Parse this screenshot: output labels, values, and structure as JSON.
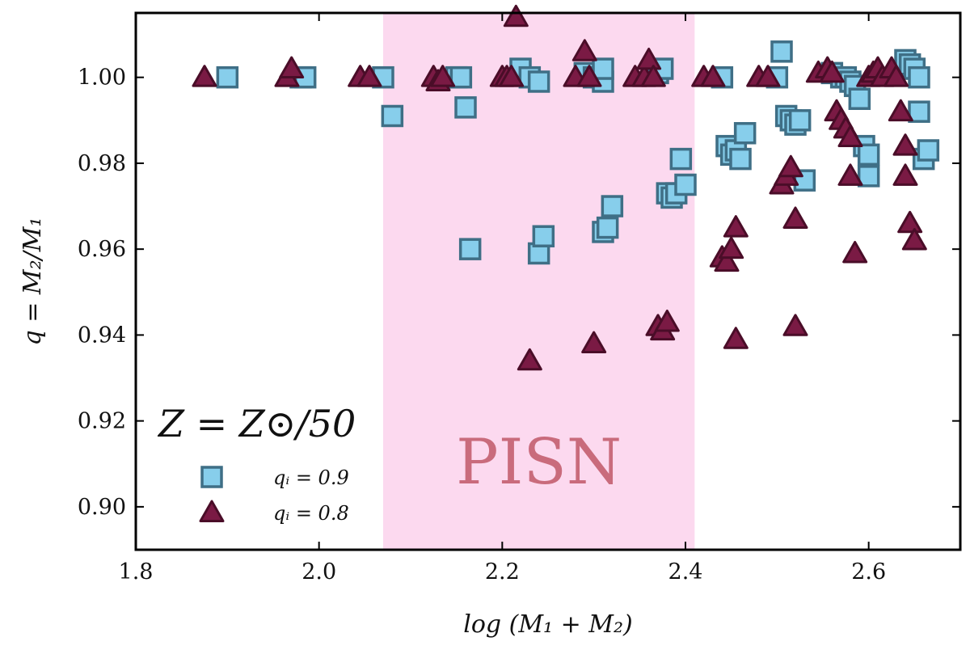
{
  "chart_data": {
    "type": "scatter",
    "title": "",
    "xlabel": "log (M₁ + M₂)",
    "ylabel": "q = M₂/M₁",
    "xlim": [
      1.8,
      2.7
    ],
    "ylim": [
      0.89,
      1.015
    ],
    "xticks": [
      "1.8",
      "2.0",
      "2.2",
      "2.4",
      "2.6"
    ],
    "xtick_values": [
      1.8,
      2.0,
      2.2,
      2.4,
      2.6
    ],
    "yticks": [
      "0.90",
      "0.92",
      "0.94",
      "0.96",
      "0.98",
      "1.00"
    ],
    "ytick_values": [
      0.9,
      0.92,
      0.94,
      0.96,
      0.98,
      1.0
    ],
    "grid": false,
    "shaded_region": {
      "label": "PISN",
      "x_range": [
        2.07,
        2.41
      ],
      "color": "#fcd9ef"
    },
    "legend": {
      "title": "Z = Z⊙/50",
      "placement": "lower-left"
    },
    "series": [
      {
        "name": "qᵢ = 0.9",
        "marker": "square",
        "color": "#87ceeb",
        "edge_color": "#3f6f86",
        "points": [
          [
            1.9,
            1.0
          ],
          [
            1.98,
            1.0
          ],
          [
            1.985,
            1.0
          ],
          [
            2.07,
            1.0
          ],
          [
            2.08,
            0.991
          ],
          [
            2.15,
            1.0
          ],
          [
            2.155,
            1.0
          ],
          [
            2.16,
            0.993
          ],
          [
            2.165,
            0.96
          ],
          [
            2.22,
            1.002
          ],
          [
            2.23,
            1.0
          ],
          [
            2.24,
            0.999
          ],
          [
            2.24,
            0.959
          ],
          [
            2.245,
            0.963
          ],
          [
            2.29,
            1.001
          ],
          [
            2.3,
            1.0
          ],
          [
            2.31,
            0.999
          ],
          [
            2.31,
            1.002
          ],
          [
            2.31,
            0.964
          ],
          [
            2.315,
            0.965
          ],
          [
            2.32,
            0.97
          ],
          [
            2.37,
            1.001
          ],
          [
            2.375,
            1.002
          ],
          [
            2.38,
            0.973
          ],
          [
            2.385,
            0.972
          ],
          [
            2.39,
            0.973
          ],
          [
            2.395,
            0.981
          ],
          [
            2.4,
            0.975
          ],
          [
            2.44,
            1.0
          ],
          [
            2.445,
            0.984
          ],
          [
            2.45,
            0.982
          ],
          [
            2.455,
            0.983
          ],
          [
            2.46,
            0.981
          ],
          [
            2.465,
            0.987
          ],
          [
            2.5,
            1.0
          ],
          [
            2.505,
            1.006
          ],
          [
            2.51,
            0.991
          ],
          [
            2.515,
            0.99
          ],
          [
            2.52,
            0.989
          ],
          [
            2.525,
            0.99
          ],
          [
            2.53,
            0.976
          ],
          [
            2.56,
            1.001
          ],
          [
            2.57,
            1.0
          ],
          [
            2.575,
            1.0
          ],
          [
            2.58,
            0.999
          ],
          [
            2.585,
            0.998
          ],
          [
            2.59,
            0.995
          ],
          [
            2.595,
            0.984
          ],
          [
            2.6,
            0.977
          ],
          [
            2.6,
            0.982
          ],
          [
            2.64,
            1.004
          ],
          [
            2.645,
            1.003
          ],
          [
            2.65,
            1.002
          ],
          [
            2.655,
            1.0
          ],
          [
            2.655,
            0.992
          ],
          [
            2.66,
            0.981
          ],
          [
            2.665,
            0.983
          ]
        ]
      },
      {
        "name": "qᵢ = 0.8",
        "marker": "triangle",
        "color": "#7a1a44",
        "edge_color": "#4a0d28",
        "points": [
          [
            1.875,
            1.0
          ],
          [
            1.965,
            1.0
          ],
          [
            1.97,
            1.002
          ],
          [
            2.045,
            1.0
          ],
          [
            2.055,
            1.0
          ],
          [
            2.125,
            1.0
          ],
          [
            2.13,
            0.999
          ],
          [
            2.135,
            1.0
          ],
          [
            2.2,
            1.0
          ],
          [
            2.205,
            1.0
          ],
          [
            2.21,
            1.0
          ],
          [
            2.215,
            1.014
          ],
          [
            2.23,
            0.934
          ],
          [
            2.28,
            1.0
          ],
          [
            2.29,
            1.006
          ],
          [
            2.295,
            1.0
          ],
          [
            2.3,
            0.938
          ],
          [
            2.345,
            1.0
          ],
          [
            2.355,
            1.0
          ],
          [
            2.36,
            1.004
          ],
          [
            2.365,
            1.0
          ],
          [
            2.37,
            0.942
          ],
          [
            2.375,
            0.941
          ],
          [
            2.38,
            0.943
          ],
          [
            2.42,
            1.0
          ],
          [
            2.43,
            1.0
          ],
          [
            2.44,
            0.958
          ],
          [
            2.445,
            0.957
          ],
          [
            2.45,
            0.96
          ],
          [
            2.455,
            0.965
          ],
          [
            2.455,
            0.939
          ],
          [
            2.48,
            1.0
          ],
          [
            2.49,
            1.0
          ],
          [
            2.505,
            0.975
          ],
          [
            2.51,
            0.977
          ],
          [
            2.515,
            0.979
          ],
          [
            2.52,
            0.967
          ],
          [
            2.52,
            0.942
          ],
          [
            2.545,
            1.001
          ],
          [
            2.555,
            1.002
          ],
          [
            2.56,
            1.001
          ],
          [
            2.565,
            0.992
          ],
          [
            2.57,
            0.99
          ],
          [
            2.575,
            0.988
          ],
          [
            2.58,
            0.986
          ],
          [
            2.58,
            0.977
          ],
          [
            2.585,
            0.959
          ],
          [
            2.6,
            1.0
          ],
          [
            2.605,
            1.001
          ],
          [
            2.61,
            1.002
          ],
          [
            2.615,
            1.0
          ],
          [
            2.625,
            1.002
          ],
          [
            2.63,
            1.0
          ],
          [
            2.635,
            0.992
          ],
          [
            2.64,
            0.984
          ],
          [
            2.64,
            0.977
          ],
          [
            2.645,
            0.966
          ],
          [
            2.65,
            0.962
          ]
        ]
      }
    ]
  }
}
